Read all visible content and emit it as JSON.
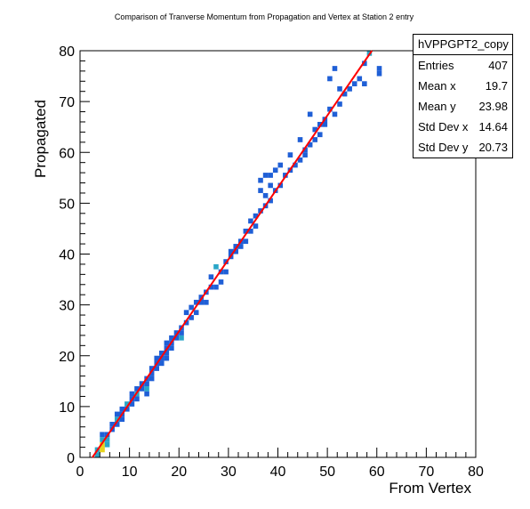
{
  "chart_data": {
    "type": "heatmap",
    "title": "Comparison of Tranverse Momentum from Propagation and Vertex at Station 2 entry",
    "xlabel": "From Vertex",
    "ylabel": "Propagated",
    "xlim": [
      0,
      80
    ],
    "ylim": [
      0,
      80
    ],
    "x_ticks": [
      "0",
      "10",
      "20",
      "30",
      "40",
      "50",
      "60",
      "70",
      "80"
    ],
    "y_ticks": [
      "0",
      "10",
      "20",
      "30",
      "40",
      "50",
      "60",
      "70",
      "80"
    ],
    "bin_width": 1,
    "legend_placement": "top-right",
    "stats": {
      "name": "hVPPGPT2_copy",
      "entries_label": "Entries",
      "entries": "407",
      "mean_x_label": "Mean x",
      "mean_x": "19.7",
      "mean_y_label": "Mean y",
      "mean_y": "23.98",
      "std_x_label": "Std Dev x",
      "std_x": "14.64",
      "std_y_label": "Std Dev y",
      "std_y": "20.73"
    },
    "fit_line": {
      "color": "#ff0000",
      "x": [
        2.5,
        59
      ],
      "y": [
        0,
        80
      ]
    },
    "colors": {
      "low": "#1f5fd6",
      "mid": "#2aa6c8",
      "high": "#e6d31a",
      "peak": "#f7e800"
    },
    "bins": [
      {
        "x": 3,
        "y": 0,
        "c": 2
      },
      {
        "x": 3,
        "y": 1,
        "c": 2
      },
      {
        "x": 4,
        "y": 1,
        "c": 3
      },
      {
        "x": 4,
        "y": 2,
        "c": 3
      },
      {
        "x": 4,
        "y": 3,
        "c": 2
      },
      {
        "x": 5,
        "y": 2,
        "c": 2
      },
      {
        "x": 5,
        "y": 3,
        "c": 2
      },
      {
        "x": 4,
        "y": 4,
        "c": 1
      },
      {
        "x": 5,
        "y": 4,
        "c": 1
      },
      {
        "x": 6,
        "y": 5,
        "c": 1
      },
      {
        "x": 6,
        "y": 6,
        "c": 1
      },
      {
        "x": 7,
        "y": 6,
        "c": 1
      },
      {
        "x": 7,
        "y": 7,
        "c": 2
      },
      {
        "x": 7,
        "y": 8,
        "c": 1
      },
      {
        "x": 8,
        "y": 7,
        "c": 1
      },
      {
        "x": 8,
        "y": 8,
        "c": 1
      },
      {
        "x": 8,
        "y": 9,
        "c": 1
      },
      {
        "x": 9,
        "y": 9,
        "c": 1
      },
      {
        "x": 9,
        "y": 10,
        "c": 2
      },
      {
        "x": 10,
        "y": 10,
        "c": 1
      },
      {
        "x": 10,
        "y": 11,
        "c": 1
      },
      {
        "x": 10,
        "y": 12,
        "c": 1
      },
      {
        "x": 11,
        "y": 11,
        "c": 1
      },
      {
        "x": 11,
        "y": 12,
        "c": 2
      },
      {
        "x": 11,
        "y": 13,
        "c": 1
      },
      {
        "x": 12,
        "y": 13,
        "c": 1
      },
      {
        "x": 12,
        "y": 14,
        "c": 1
      },
      {
        "x": 13,
        "y": 12,
        "c": 1
      },
      {
        "x": 13,
        "y": 13,
        "c": 2
      },
      {
        "x": 13,
        "y": 14,
        "c": 1
      },
      {
        "x": 13,
        "y": 15,
        "c": 1
      },
      {
        "x": 14,
        "y": 15,
        "c": 1
      },
      {
        "x": 14,
        "y": 16,
        "c": 1
      },
      {
        "x": 14,
        "y": 17,
        "c": 1
      },
      {
        "x": 15,
        "y": 17,
        "c": 1
      },
      {
        "x": 15,
        "y": 18,
        "c": 1
      },
      {
        "x": 15,
        "y": 19,
        "c": 1
      },
      {
        "x": 16,
        "y": 18,
        "c": 1
      },
      {
        "x": 16,
        "y": 19,
        "c": 1
      },
      {
        "x": 16,
        "y": 20,
        "c": 1
      },
      {
        "x": 17,
        "y": 19,
        "c": 1
      },
      {
        "x": 17,
        "y": 20,
        "c": 1
      },
      {
        "x": 17,
        "y": 21,
        "c": 1
      },
      {
        "x": 17,
        "y": 22,
        "c": 1
      },
      {
        "x": 18,
        "y": 21,
        "c": 1
      },
      {
        "x": 18,
        "y": 22,
        "c": 1
      },
      {
        "x": 18,
        "y": 23,
        "c": 1
      },
      {
        "x": 19,
        "y": 23,
        "c": 1
      },
      {
        "x": 19,
        "y": 24,
        "c": 1
      },
      {
        "x": 20,
        "y": 23,
        "c": 2
      },
      {
        "x": 20,
        "y": 24,
        "c": 1
      },
      {
        "x": 20,
        "y": 25,
        "c": 1
      },
      {
        "x": 21,
        "y": 26,
        "c": 1
      },
      {
        "x": 21,
        "y": 28,
        "c": 1
      },
      {
        "x": 22,
        "y": 27,
        "c": 1
      },
      {
        "x": 22,
        "y": 29,
        "c": 1
      },
      {
        "x": 23,
        "y": 28,
        "c": 1
      },
      {
        "x": 23,
        "y": 30,
        "c": 1
      },
      {
        "x": 24,
        "y": 30,
        "c": 1
      },
      {
        "x": 24,
        "y": 31,
        "c": 1
      },
      {
        "x": 25,
        "y": 30,
        "c": 1
      },
      {
        "x": 25,
        "y": 32,
        "c": 1
      },
      {
        "x": 26,
        "y": 33,
        "c": 1
      },
      {
        "x": 26,
        "y": 35,
        "c": 1
      },
      {
        "x": 27,
        "y": 33,
        "c": 1
      },
      {
        "x": 27,
        "y": 37,
        "c": 2
      },
      {
        "x": 28,
        "y": 34,
        "c": 1
      },
      {
        "x": 28,
        "y": 36,
        "c": 1
      },
      {
        "x": 29,
        "y": 36,
        "c": 1
      },
      {
        "x": 29,
        "y": 38,
        "c": 1
      },
      {
        "x": 30,
        "y": 39,
        "c": 1
      },
      {
        "x": 30,
        "y": 40,
        "c": 1
      },
      {
        "x": 31,
        "y": 40,
        "c": 1
      },
      {
        "x": 31,
        "y": 41,
        "c": 1
      },
      {
        "x": 32,
        "y": 41,
        "c": 1
      },
      {
        "x": 32,
        "y": 42,
        "c": 1
      },
      {
        "x": 33,
        "y": 42,
        "c": 1
      },
      {
        "x": 33,
        "y": 44,
        "c": 1
      },
      {
        "x": 34,
        "y": 44,
        "c": 1
      },
      {
        "x": 34,
        "y": 46,
        "c": 1
      },
      {
        "x": 35,
        "y": 47,
        "c": 1
      },
      {
        "x": 35,
        "y": 45,
        "c": 1
      },
      {
        "x": 36,
        "y": 48,
        "c": 1
      },
      {
        "x": 36,
        "y": 52,
        "c": 1
      },
      {
        "x": 36,
        "y": 54,
        "c": 1
      },
      {
        "x": 37,
        "y": 49,
        "c": 1
      },
      {
        "x": 37,
        "y": 51,
        "c": 1
      },
      {
        "x": 37,
        "y": 55,
        "c": 1
      },
      {
        "x": 38,
        "y": 50,
        "c": 1
      },
      {
        "x": 38,
        "y": 53,
        "c": 1
      },
      {
        "x": 38,
        "y": 55,
        "c": 1
      },
      {
        "x": 39,
        "y": 52,
        "c": 1
      },
      {
        "x": 39,
        "y": 56,
        "c": 1
      },
      {
        "x": 40,
        "y": 53,
        "c": 1
      },
      {
        "x": 40,
        "y": 57,
        "c": 1
      },
      {
        "x": 41,
        "y": 55,
        "c": 1
      },
      {
        "x": 42,
        "y": 56,
        "c": 1
      },
      {
        "x": 42,
        "y": 59,
        "c": 1
      },
      {
        "x": 43,
        "y": 57,
        "c": 1
      },
      {
        "x": 44,
        "y": 58,
        "c": 1
      },
      {
        "x": 44,
        "y": 62,
        "c": 1
      },
      {
        "x": 45,
        "y": 59,
        "c": 1
      },
      {
        "x": 45,
        "y": 60,
        "c": 1
      },
      {
        "x": 46,
        "y": 61,
        "c": 1
      },
      {
        "x": 46,
        "y": 67,
        "c": 1
      },
      {
        "x": 47,
        "y": 62,
        "c": 1
      },
      {
        "x": 47,
        "y": 64,
        "c": 1
      },
      {
        "x": 48,
        "y": 63,
        "c": 1
      },
      {
        "x": 48,
        "y": 65,
        "c": 1
      },
      {
        "x": 49,
        "y": 65,
        "c": 1
      },
      {
        "x": 49,
        "y": 66,
        "c": 1
      },
      {
        "x": 50,
        "y": 68,
        "c": 1
      },
      {
        "x": 50,
        "y": 74,
        "c": 1
      },
      {
        "x": 51,
        "y": 67,
        "c": 1
      },
      {
        "x": 51,
        "y": 76,
        "c": 1
      },
      {
        "x": 52,
        "y": 69,
        "c": 1
      },
      {
        "x": 52,
        "y": 72,
        "c": 1
      },
      {
        "x": 53,
        "y": 71,
        "c": 1
      },
      {
        "x": 54,
        "y": 72,
        "c": 1
      },
      {
        "x": 55,
        "y": 73,
        "c": 1
      },
      {
        "x": 56,
        "y": 74,
        "c": 1
      },
      {
        "x": 57,
        "y": 73,
        "c": 1
      },
      {
        "x": 57,
        "y": 77,
        "c": 1
      },
      {
        "x": 58,
        "y": 79,
        "c": 2
      },
      {
        "x": 60,
        "y": 75,
        "c": 1
      },
      {
        "x": 60,
        "y": 76,
        "c": 1
      }
    ]
  }
}
